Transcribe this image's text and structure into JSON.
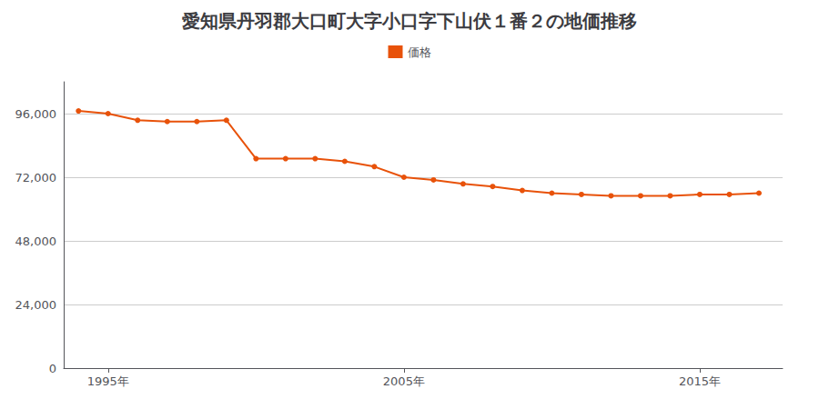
{
  "chart_data": {
    "type": "line",
    "title": "愛知県丹羽郡大口町大字小口字下山伏１番２の地価推移",
    "x": [
      1994,
      1995,
      1996,
      1997,
      1998,
      1999,
      2000,
      2001,
      2002,
      2003,
      2004,
      2005,
      2006,
      2007,
      2008,
      2009,
      2010,
      2011,
      2012,
      2013,
      2014,
      2015,
      2016,
      2017
    ],
    "series": [
      {
        "name": "価格",
        "color": "#E8520A",
        "values": [
          97000,
          96000,
          93500,
          93000,
          93000,
          93500,
          79000,
          79000,
          79000,
          78000,
          76000,
          72000,
          71000,
          69500,
          68500,
          67000,
          66000,
          65500,
          65000,
          65000,
          65000,
          65500,
          65500,
          66000
        ]
      }
    ],
    "xlim": [
      1993.5,
      2017.8
    ],
    "xticks": [
      {
        "value": 1995,
        "label": "1995年"
      },
      {
        "value": 2005,
        "label": "2005年"
      },
      {
        "value": 2015,
        "label": "2015年"
      }
    ],
    "ylim": [
      0,
      108000
    ],
    "yticks": [
      0,
      {
        "value": 24000,
        "label": "24,000"
      },
      {
        "value": 48000,
        "label": "48,000"
      },
      {
        "value": 72000,
        "label": "72,000"
      },
      {
        "value": 96000,
        "label": "96,000"
      }
    ],
    "grid": true,
    "legend": "top",
    "marker": "circle",
    "line_style": "solid"
  }
}
